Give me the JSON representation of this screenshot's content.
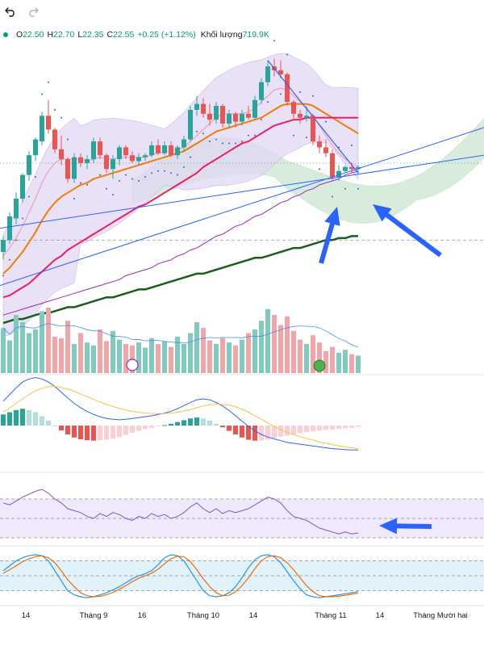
{
  "toolbar": {
    "undo_icon": "undo-arrow-icon",
    "redo_icon": "redo-arrow-icon"
  },
  "legend": {
    "dot_color": "#089981",
    "open_label": "O",
    "open": "22.50",
    "high_label": "H",
    "high": "22.70",
    "low_label": "L",
    "low": "22.35",
    "close_label": "C",
    "close": "22.55",
    "change": "+0.25 (+1.12%)",
    "volume_label": "Khối lượng",
    "volume": "719.9K"
  },
  "colors": {
    "up": "#26a69a",
    "down": "#ef5350",
    "vol_up": "#7fcbbd",
    "vol_down": "#f4a3a6",
    "ma_fast": "#f48fb1",
    "ma_orange": "#f57c00",
    "ma_red": "#e91e63",
    "ma_green": "#1b5e20",
    "ma_purple": "#9c27b0",
    "trend": "#2962ff",
    "bb_fill": "#e1d8f3",
    "cloud_green": "#d7ecdb",
    "macd_signal": "#f6c343",
    "rsi_band": "#efe9fb",
    "stoch_band": "#e1f2fb",
    "stoch_k": "#2196f3",
    "stoch_d": "#ef6c00"
  },
  "chart_data": {
    "type": "candlestick",
    "title": "",
    "x_ticks": [
      "14",
      "Tháng 9",
      "16",
      "Tháng 10",
      "14",
      "Tháng 11",
      "14",
      "Tháng Mười hai"
    ],
    "price_range": [
      13.0,
      26.5
    ],
    "reference_lines": {
      "dashed_gray": 17.2,
      "dotted_green": 21.1
    },
    "candles": [
      {
        "o": 16.6,
        "h": 17.4,
        "l": 16.2,
        "c": 17.2
      },
      {
        "o": 17.2,
        "h": 18.6,
        "l": 17.0,
        "c": 18.4
      },
      {
        "o": 18.3,
        "h": 19.6,
        "l": 18.0,
        "c": 19.3
      },
      {
        "o": 19.3,
        "h": 20.6,
        "l": 19.1,
        "c": 20.5
      },
      {
        "o": 20.5,
        "h": 21.7,
        "l": 20.2,
        "c": 21.5
      },
      {
        "o": 21.5,
        "h": 22.4,
        "l": 21.2,
        "c": 22.3
      },
      {
        "o": 22.2,
        "h": 23.7,
        "l": 22.0,
        "c": 23.5
      },
      {
        "o": 23.5,
        "h": 24.3,
        "l": 22.6,
        "c": 22.8
      },
      {
        "o": 22.8,
        "h": 22.9,
        "l": 21.6,
        "c": 21.8
      },
      {
        "o": 21.8,
        "h": 22.5,
        "l": 21.0,
        "c": 21.3
      },
      {
        "o": 21.3,
        "h": 21.4,
        "l": 20.1,
        "c": 20.3
      },
      {
        "o": 20.3,
        "h": 21.6,
        "l": 20.1,
        "c": 21.4
      },
      {
        "o": 21.4,
        "h": 21.6,
        "l": 20.9,
        "c": 21.1
      },
      {
        "o": 21.1,
        "h": 21.5,
        "l": 20.8,
        "c": 21.3
      },
      {
        "o": 21.3,
        "h": 22.4,
        "l": 21.1,
        "c": 22.2
      },
      {
        "o": 22.2,
        "h": 22.4,
        "l": 21.3,
        "c": 21.5
      },
      {
        "o": 21.5,
        "h": 21.6,
        "l": 20.6,
        "c": 20.8
      },
      {
        "o": 20.8,
        "h": 21.5,
        "l": 20.3,
        "c": 21.3
      },
      {
        "o": 21.3,
        "h": 22.0,
        "l": 21.0,
        "c": 21.9
      },
      {
        "o": 21.9,
        "h": 22.0,
        "l": 21.3,
        "c": 21.5
      },
      {
        "o": 21.5,
        "h": 21.7,
        "l": 21.1,
        "c": 21.2
      },
      {
        "o": 21.2,
        "h": 21.6,
        "l": 21.0,
        "c": 21.4
      },
      {
        "o": 21.4,
        "h": 21.6,
        "l": 21.2,
        "c": 21.5
      },
      {
        "o": 21.5,
        "h": 22.2,
        "l": 21.4,
        "c": 22.0
      },
      {
        "o": 22.0,
        "h": 22.3,
        "l": 21.5,
        "c": 21.6
      },
      {
        "o": 21.6,
        "h": 22.2,
        "l": 21.5,
        "c": 22.0
      },
      {
        "o": 22.0,
        "h": 22.2,
        "l": 21.4,
        "c": 21.5
      },
      {
        "o": 21.5,
        "h": 22.0,
        "l": 21.3,
        "c": 21.9
      },
      {
        "o": 21.9,
        "h": 22.5,
        "l": 21.7,
        "c": 22.3
      },
      {
        "o": 22.3,
        "h": 24.0,
        "l": 22.2,
        "c": 23.8
      },
      {
        "o": 23.8,
        "h": 24.5,
        "l": 23.5,
        "c": 24.1
      },
      {
        "o": 24.1,
        "h": 24.4,
        "l": 23.4,
        "c": 23.6
      },
      {
        "o": 23.6,
        "h": 24.1,
        "l": 23.0,
        "c": 23.3
      },
      {
        "o": 23.3,
        "h": 24.2,
        "l": 23.1,
        "c": 24.0
      },
      {
        "o": 24.0,
        "h": 24.1,
        "l": 22.9,
        "c": 23.1
      },
      {
        "o": 23.1,
        "h": 23.8,
        "l": 22.9,
        "c": 23.6
      },
      {
        "o": 23.6,
        "h": 23.7,
        "l": 22.9,
        "c": 23.2
      },
      {
        "o": 23.2,
        "h": 23.8,
        "l": 23.0,
        "c": 23.6
      },
      {
        "o": 23.6,
        "h": 24.0,
        "l": 23.3,
        "c": 23.4
      },
      {
        "o": 23.4,
        "h": 24.5,
        "l": 23.3,
        "c": 24.3
      },
      {
        "o": 24.3,
        "h": 25.4,
        "l": 24.1,
        "c": 25.2
      },
      {
        "o": 25.2,
        "h": 26.3,
        "l": 25.0,
        "c": 26.0
      },
      {
        "o": 26.0,
        "h": 26.4,
        "l": 25.5,
        "c": 25.8
      },
      {
        "o": 25.8,
        "h": 26.3,
        "l": 25.4,
        "c": 25.6
      },
      {
        "o": 25.6,
        "h": 25.7,
        "l": 24.0,
        "c": 24.2
      },
      {
        "o": 24.2,
        "h": 24.3,
        "l": 23.3,
        "c": 23.6
      },
      {
        "o": 23.6,
        "h": 23.8,
        "l": 23.1,
        "c": 23.4
      },
      {
        "o": 23.4,
        "h": 24.0,
        "l": 23.2,
        "c": 23.5
      },
      {
        "o": 23.5,
        "h": 23.6,
        "l": 22.0,
        "c": 22.2
      },
      {
        "o": 22.2,
        "h": 22.5,
        "l": 21.6,
        "c": 21.9
      },
      {
        "o": 21.9,
        "h": 22.3,
        "l": 21.4,
        "c": 21.6
      },
      {
        "o": 21.6,
        "h": 21.8,
        "l": 20.2,
        "c": 20.4
      },
      {
        "o": 20.4,
        "h": 21.0,
        "l": 20.2,
        "c": 20.7
      },
      {
        "o": 20.7,
        "h": 21.0,
        "l": 20.6,
        "c": 20.9
      },
      {
        "o": 20.9,
        "h": 21.1,
        "l": 20.6,
        "c": 20.8
      },
      {
        "o": 20.8,
        "h": 21.0,
        "l": 20.6,
        "c": 20.9
      }
    ],
    "series": [
      {
        "kind": "ma_fast",
        "values": [
          16.4,
          16.8,
          17.3,
          17.9,
          18.6,
          19.3,
          20.1,
          20.7,
          21.1,
          21.3,
          21.3,
          21.3,
          21.3,
          21.2,
          21.3,
          21.4,
          21.3,
          21.3,
          21.4,
          21.4,
          21.4,
          21.4,
          21.4,
          21.5,
          21.6,
          21.7,
          21.7,
          21.8,
          21.9,
          22.2,
          22.5,
          22.8,
          23.1,
          23.4,
          23.6,
          23.6,
          23.6,
          23.6,
          23.7,
          23.9,
          24.2,
          24.5,
          24.8,
          24.9,
          24.8,
          24.5,
          24.2,
          23.9,
          23.5,
          23.0,
          22.5,
          22.0,
          21.6,
          21.3,
          21.1,
          20.9
        ]
      },
      {
        "kind": "ma_orange",
        "values": [
          15.5,
          15.8,
          16.2,
          16.6,
          17.1,
          17.6,
          18.2,
          18.7,
          19.1,
          19.4,
          19.6,
          19.8,
          20.0,
          20.1,
          20.3,
          20.4,
          20.5,
          20.6,
          20.7,
          20.8,
          20.9,
          21.0,
          21.1,
          21.2,
          21.3,
          21.4,
          21.5,
          21.6,
          21.7,
          21.9,
          22.1,
          22.3,
          22.5,
          22.7,
          22.8,
          22.9,
          23.0,
          23.1,
          23.2,
          23.3,
          23.4,
          23.6,
          23.8,
          24.0,
          24.1,
          24.1,
          24.1,
          24.1,
          24.0,
          23.8,
          23.6,
          23.4,
          23.2,
          23.0,
          22.8,
          22.6
        ]
      },
      {
        "kind": "ma_red",
        "values": [
          14.3,
          14.4,
          14.6,
          14.8,
          15.0,
          15.3,
          15.6,
          15.9,
          16.2,
          16.4,
          16.7,
          16.9,
          17.1,
          17.3,
          17.5,
          17.7,
          17.9,
          18.1,
          18.3,
          18.5,
          18.7,
          18.9,
          19.0,
          19.2,
          19.4,
          19.6,
          19.8,
          20.0,
          20.2,
          20.4,
          20.6,
          20.9,
          21.1,
          21.3,
          21.5,
          21.7,
          21.9,
          22.1,
          22.2,
          22.4,
          22.6,
          22.8,
          23.0,
          23.1,
          23.2,
          23.3,
          23.3,
          23.4,
          23.4,
          23.4,
          23.4,
          23.4,
          23.4,
          23.4,
          23.4,
          23.4
        ]
      },
      {
        "kind": "ma_purple",
        "values": [
          13.4,
          13.5,
          13.6,
          13.7,
          13.8,
          13.9,
          14.0,
          14.1,
          14.2,
          14.3,
          14.4,
          14.5,
          14.6,
          14.7,
          14.8,
          14.9,
          15.0,
          15.1,
          15.2,
          15.4,
          15.5,
          15.6,
          15.7,
          15.8,
          16.0,
          16.1,
          16.2,
          16.4,
          16.5,
          16.7,
          16.8,
          17.0,
          17.2,
          17.4,
          17.5,
          17.7,
          17.9,
          18.0,
          18.2,
          18.4,
          18.5,
          18.7,
          18.9,
          19.1,
          19.2,
          19.4,
          19.5,
          19.7,
          19.8,
          20.0,
          20.1,
          20.2,
          20.3,
          20.5,
          20.6,
          20.7
        ]
      },
      {
        "kind": "ma_green",
        "values": [
          13.0,
          13.1,
          13.2,
          13.2,
          13.3,
          13.4,
          13.5,
          13.5,
          13.6,
          13.7,
          13.8,
          13.8,
          13.9,
          14.0,
          14.1,
          14.2,
          14.3,
          14.3,
          14.4,
          14.5,
          14.6,
          14.7,
          14.7,
          14.8,
          14.9,
          15.0,
          15.1,
          15.2,
          15.3,
          15.4,
          15.5,
          15.5,
          15.6,
          15.7,
          15.8,
          15.9,
          16.0,
          16.1,
          16.2,
          16.3,
          16.3,
          16.4,
          16.5,
          16.6,
          16.7,
          16.8,
          16.8,
          16.9,
          17.0,
          17.1,
          17.2,
          17.2,
          17.3,
          17.3,
          17.4,
          17.4
        ]
      }
    ],
    "volume": [
      62,
      45,
      80,
      70,
      55,
      60,
      85,
      90,
      50,
      48,
      72,
      40,
      55,
      42,
      38,
      60,
      44,
      58,
      46,
      40,
      38,
      42,
      35,
      48,
      40,
      44,
      36,
      50,
      40,
      55,
      70,
      62,
      45,
      40,
      48,
      42,
      38,
      46,
      55,
      60,
      72,
      88,
      80,
      66,
      78,
      58,
      46,
      40,
      52,
      42,
      30,
      36,
      28,
      32,
      26,
      24
    ],
    "macd": {
      "macd": [
        0.55,
        0.7,
        0.85,
        0.98,
        1.05,
        1.08,
        1.05,
        0.98,
        0.88,
        0.75,
        0.62,
        0.5,
        0.4,
        0.32,
        0.25,
        0.2,
        0.16,
        0.14,
        0.13,
        0.14,
        0.16,
        0.18,
        0.2,
        0.22,
        0.25,
        0.28,
        0.32,
        0.38,
        0.45,
        0.52,
        0.58,
        0.6,
        0.58,
        0.52,
        0.44,
        0.34,
        0.22,
        0.1,
        -0.02,
        -0.12,
        -0.2,
        -0.26,
        -0.3,
        -0.34,
        -0.38,
        -0.4,
        -0.42,
        -0.44,
        -0.46,
        -0.48,
        -0.5,
        -0.52,
        -0.53,
        -0.54,
        -0.55,
        -0.55
      ],
      "signal": [
        0.3,
        0.4,
        0.5,
        0.6,
        0.7,
        0.78,
        0.84,
        0.87,
        0.88,
        0.86,
        0.82,
        0.77,
        0.71,
        0.65,
        0.59,
        0.53,
        0.48,
        0.43,
        0.39,
        0.35,
        0.32,
        0.3,
        0.28,
        0.27,
        0.27,
        0.27,
        0.28,
        0.3,
        0.33,
        0.36,
        0.4,
        0.44,
        0.47,
        0.48,
        0.48,
        0.46,
        0.42,
        0.37,
        0.3,
        0.22,
        0.14,
        0.06,
        -0.02,
        -0.09,
        -0.15,
        -0.2,
        -0.25,
        -0.29,
        -0.33,
        -0.37,
        -0.4,
        -0.43,
        -0.46,
        -0.48,
        -0.5,
        -0.52
      ],
      "hist": [
        0.25,
        0.3,
        0.35,
        0.38,
        0.35,
        0.3,
        0.21,
        0.11,
        0.0,
        -0.11,
        -0.2,
        -0.27,
        -0.31,
        -0.33,
        -0.34,
        -0.33,
        -0.32,
        -0.29,
        -0.26,
        -0.21,
        -0.16,
        -0.12,
        -0.08,
        -0.05,
        -0.02,
        0.01,
        0.04,
        0.08,
        0.12,
        0.16,
        0.18,
        0.16,
        0.11,
        0.04,
        -0.04,
        -0.12,
        -0.2,
        -0.27,
        -0.32,
        -0.34,
        -0.34,
        -0.32,
        -0.28,
        -0.25,
        -0.23,
        -0.2,
        -0.17,
        -0.15,
        -0.13,
        -0.11,
        -0.1,
        -0.09,
        -0.07,
        -0.06,
        -0.05,
        -0.03
      ]
    },
    "rsi": [
      66,
      64,
      68,
      72,
      75,
      78,
      80,
      76,
      70,
      66,
      60,
      58,
      56,
      52,
      50,
      55,
      52,
      56,
      54,
      50,
      48,
      52,
      50,
      55,
      52,
      54,
      50,
      52,
      56,
      62,
      66,
      60,
      56,
      60,
      55,
      58,
      56,
      58,
      60,
      64,
      68,
      72,
      70,
      66,
      58,
      52,
      50,
      48,
      44,
      40,
      38,
      36,
      34,
      36,
      34,
      35
    ],
    "stoch": {
      "k": [
        60,
        70,
        80,
        86,
        90,
        92,
        90,
        80,
        60,
        40,
        20,
        12,
        8,
        6,
        8,
        12,
        16,
        22,
        28,
        36,
        44,
        50,
        54,
        60,
        72,
        86,
        92,
        90,
        80,
        60,
        40,
        20,
        10,
        8,
        10,
        16,
        28,
        46,
        66,
        82,
        90,
        92,
        88,
        76,
        58,
        40,
        24,
        12,
        8,
        6,
        8,
        10,
        12,
        14,
        16,
        18
      ],
      "d": [
        55,
        62,
        70,
        78,
        84,
        88,
        90,
        86,
        76,
        60,
        42,
        28,
        16,
        10,
        8,
        9,
        12,
        17,
        23,
        30,
        38,
        45,
        50,
        55,
        63,
        74,
        84,
        89,
        88,
        78,
        62,
        44,
        28,
        16,
        10,
        11,
        18,
        30,
        46,
        64,
        80,
        88,
        90,
        86,
        76,
        62,
        46,
        30,
        18,
        10,
        8,
        8,
        9,
        11,
        13,
        15
      ]
    }
  }
}
